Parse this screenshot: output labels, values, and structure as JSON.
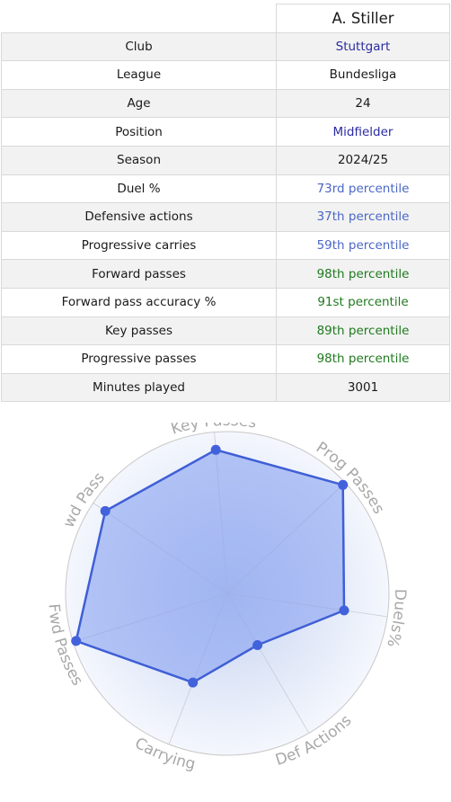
{
  "player": {
    "name": "A. Stiller"
  },
  "table": {
    "rows": [
      {
        "label": "Club",
        "value": "Stuttgart",
        "color": "#2b2ba3"
      },
      {
        "label": "League",
        "value": "Bundesliga",
        "color": "#1a1a1a"
      },
      {
        "label": "Age",
        "value": "24",
        "color": "#1a1a1a"
      },
      {
        "label": "Position",
        "value": "Midfielder",
        "color": "#2b2ba3"
      },
      {
        "label": "Season",
        "value": "2024/25",
        "color": "#1a1a1a"
      },
      {
        "label": "Duel %",
        "value": "73rd percentile",
        "color": "#4a67c5"
      },
      {
        "label": "Defensive actions",
        "value": "37th percentile",
        "color": "#4a67c5"
      },
      {
        "label": "Progressive carries",
        "value": "59th percentile",
        "color": "#4a67c5"
      },
      {
        "label": "Forward passes",
        "value": "98th percentile",
        "color": "#1f7a1f"
      },
      {
        "label": "Forward pass accuracy %",
        "value": "91st percentile",
        "color": "#1f7a1f"
      },
      {
        "label": "Key passes",
        "value": "89th percentile",
        "color": "#1f7a1f"
      },
      {
        "label": "Progressive passes",
        "value": "98th percentile",
        "color": "#1f7a1f"
      },
      {
        "label": "Minutes played",
        "value": "3001",
        "color": "#1a1a1a"
      }
    ]
  },
  "chart_data": {
    "type": "radar",
    "axes": [
      "Key Passes",
      "Prog Passes",
      "Duels%",
      "Def Actions",
      "Carrying",
      "Fwd Passes",
      "Fwd Pass%"
    ],
    "values": [
      89,
      98,
      73,
      37,
      59,
      98,
      91
    ],
    "range": [
      0,
      100
    ],
    "fill_color": "#7f9bf0",
    "line_color": "#3f5fd6",
    "marker_color": "#4262dc",
    "grid": true
  }
}
